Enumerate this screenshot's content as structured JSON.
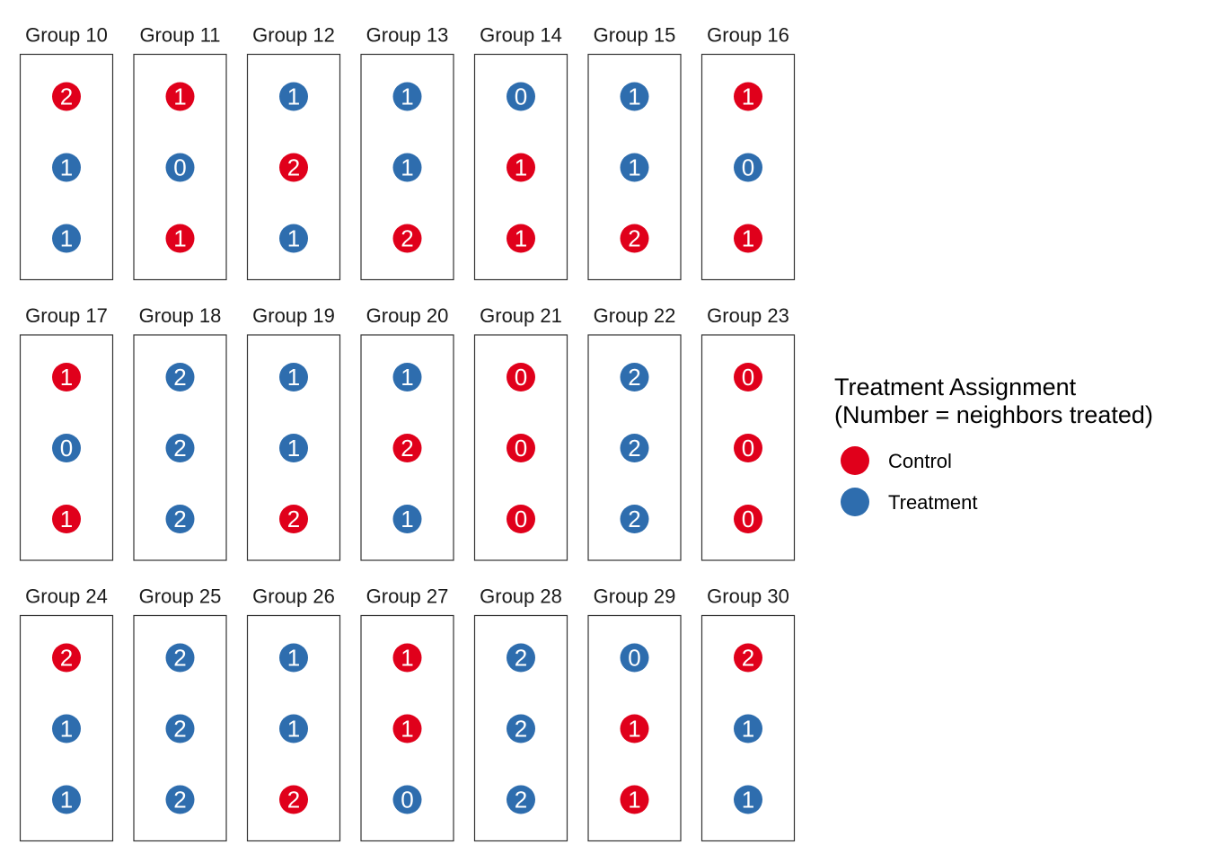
{
  "chart_data": {
    "type": "scatter",
    "legend": {
      "title_line1": "Treatment Assignment",
      "title_line2": "(Number = neighbors treated)",
      "position": "right",
      "items": [
        {
          "label": "Control",
          "color": "#E0001B"
        },
        {
          "label": "Treatment",
          "color": "#2E6DAE"
        }
      ]
    },
    "colors": {
      "Control": "#E0001B",
      "Treatment": "#2E6DAE",
      "panel_border": "#333333",
      "dot_text": "#FFFFFF"
    },
    "facets": [
      {
        "title": "Group 10",
        "units": [
          {
            "assignment": "Control",
            "neighbors_treated": 2
          },
          {
            "assignment": "Treatment",
            "neighbors_treated": 1
          },
          {
            "assignment": "Treatment",
            "neighbors_treated": 1
          }
        ]
      },
      {
        "title": "Group 11",
        "units": [
          {
            "assignment": "Control",
            "neighbors_treated": 1
          },
          {
            "assignment": "Treatment",
            "neighbors_treated": 0
          },
          {
            "assignment": "Control",
            "neighbors_treated": 1
          }
        ]
      },
      {
        "title": "Group 12",
        "units": [
          {
            "assignment": "Treatment",
            "neighbors_treated": 1
          },
          {
            "assignment": "Control",
            "neighbors_treated": 2
          },
          {
            "assignment": "Treatment",
            "neighbors_treated": 1
          }
        ]
      },
      {
        "title": "Group 13",
        "units": [
          {
            "assignment": "Treatment",
            "neighbors_treated": 1
          },
          {
            "assignment": "Treatment",
            "neighbors_treated": 1
          },
          {
            "assignment": "Control",
            "neighbors_treated": 2
          }
        ]
      },
      {
        "title": "Group 14",
        "units": [
          {
            "assignment": "Treatment",
            "neighbors_treated": 0
          },
          {
            "assignment": "Control",
            "neighbors_treated": 1
          },
          {
            "assignment": "Control",
            "neighbors_treated": 1
          }
        ]
      },
      {
        "title": "Group 15",
        "units": [
          {
            "assignment": "Treatment",
            "neighbors_treated": 1
          },
          {
            "assignment": "Treatment",
            "neighbors_treated": 1
          },
          {
            "assignment": "Control",
            "neighbors_treated": 2
          }
        ]
      },
      {
        "title": "Group 16",
        "units": [
          {
            "assignment": "Control",
            "neighbors_treated": 1
          },
          {
            "assignment": "Treatment",
            "neighbors_treated": 0
          },
          {
            "assignment": "Control",
            "neighbors_treated": 1
          }
        ]
      },
      {
        "title": "Group 17",
        "units": [
          {
            "assignment": "Control",
            "neighbors_treated": 1
          },
          {
            "assignment": "Treatment",
            "neighbors_treated": 0
          },
          {
            "assignment": "Control",
            "neighbors_treated": 1
          }
        ]
      },
      {
        "title": "Group 18",
        "units": [
          {
            "assignment": "Treatment",
            "neighbors_treated": 2
          },
          {
            "assignment": "Treatment",
            "neighbors_treated": 2
          },
          {
            "assignment": "Treatment",
            "neighbors_treated": 2
          }
        ]
      },
      {
        "title": "Group 19",
        "units": [
          {
            "assignment": "Treatment",
            "neighbors_treated": 1
          },
          {
            "assignment": "Treatment",
            "neighbors_treated": 1
          },
          {
            "assignment": "Control",
            "neighbors_treated": 2
          }
        ]
      },
      {
        "title": "Group 20",
        "units": [
          {
            "assignment": "Treatment",
            "neighbors_treated": 1
          },
          {
            "assignment": "Control",
            "neighbors_treated": 2
          },
          {
            "assignment": "Treatment",
            "neighbors_treated": 1
          }
        ]
      },
      {
        "title": "Group 21",
        "units": [
          {
            "assignment": "Control",
            "neighbors_treated": 0
          },
          {
            "assignment": "Control",
            "neighbors_treated": 0
          },
          {
            "assignment": "Control",
            "neighbors_treated": 0
          }
        ]
      },
      {
        "title": "Group 22",
        "units": [
          {
            "assignment": "Treatment",
            "neighbors_treated": 2
          },
          {
            "assignment": "Treatment",
            "neighbors_treated": 2
          },
          {
            "assignment": "Treatment",
            "neighbors_treated": 2
          }
        ]
      },
      {
        "title": "Group 23",
        "units": [
          {
            "assignment": "Control",
            "neighbors_treated": 0
          },
          {
            "assignment": "Control",
            "neighbors_treated": 0
          },
          {
            "assignment": "Control",
            "neighbors_treated": 0
          }
        ]
      },
      {
        "title": "Group 24",
        "units": [
          {
            "assignment": "Control",
            "neighbors_treated": 2
          },
          {
            "assignment": "Treatment",
            "neighbors_treated": 1
          },
          {
            "assignment": "Treatment",
            "neighbors_treated": 1
          }
        ]
      },
      {
        "title": "Group 25",
        "units": [
          {
            "assignment": "Treatment",
            "neighbors_treated": 2
          },
          {
            "assignment": "Treatment",
            "neighbors_treated": 2
          },
          {
            "assignment": "Treatment",
            "neighbors_treated": 2
          }
        ]
      },
      {
        "title": "Group 26",
        "units": [
          {
            "assignment": "Treatment",
            "neighbors_treated": 1
          },
          {
            "assignment": "Treatment",
            "neighbors_treated": 1
          },
          {
            "assignment": "Control",
            "neighbors_treated": 2
          }
        ]
      },
      {
        "title": "Group 27",
        "units": [
          {
            "assignment": "Control",
            "neighbors_treated": 1
          },
          {
            "assignment": "Control",
            "neighbors_treated": 1
          },
          {
            "assignment": "Treatment",
            "neighbors_treated": 0
          }
        ]
      },
      {
        "title": "Group 28",
        "units": [
          {
            "assignment": "Treatment",
            "neighbors_treated": 2
          },
          {
            "assignment": "Treatment",
            "neighbors_treated": 2
          },
          {
            "assignment": "Treatment",
            "neighbors_treated": 2
          }
        ]
      },
      {
        "title": "Group 29",
        "units": [
          {
            "assignment": "Treatment",
            "neighbors_treated": 0
          },
          {
            "assignment": "Control",
            "neighbors_treated": 1
          },
          {
            "assignment": "Control",
            "neighbors_treated": 1
          }
        ]
      },
      {
        "title": "Group 30",
        "units": [
          {
            "assignment": "Control",
            "neighbors_treated": 2
          },
          {
            "assignment": "Treatment",
            "neighbors_treated": 1
          },
          {
            "assignment": "Treatment",
            "neighbors_treated": 1
          }
        ]
      }
    ]
  }
}
